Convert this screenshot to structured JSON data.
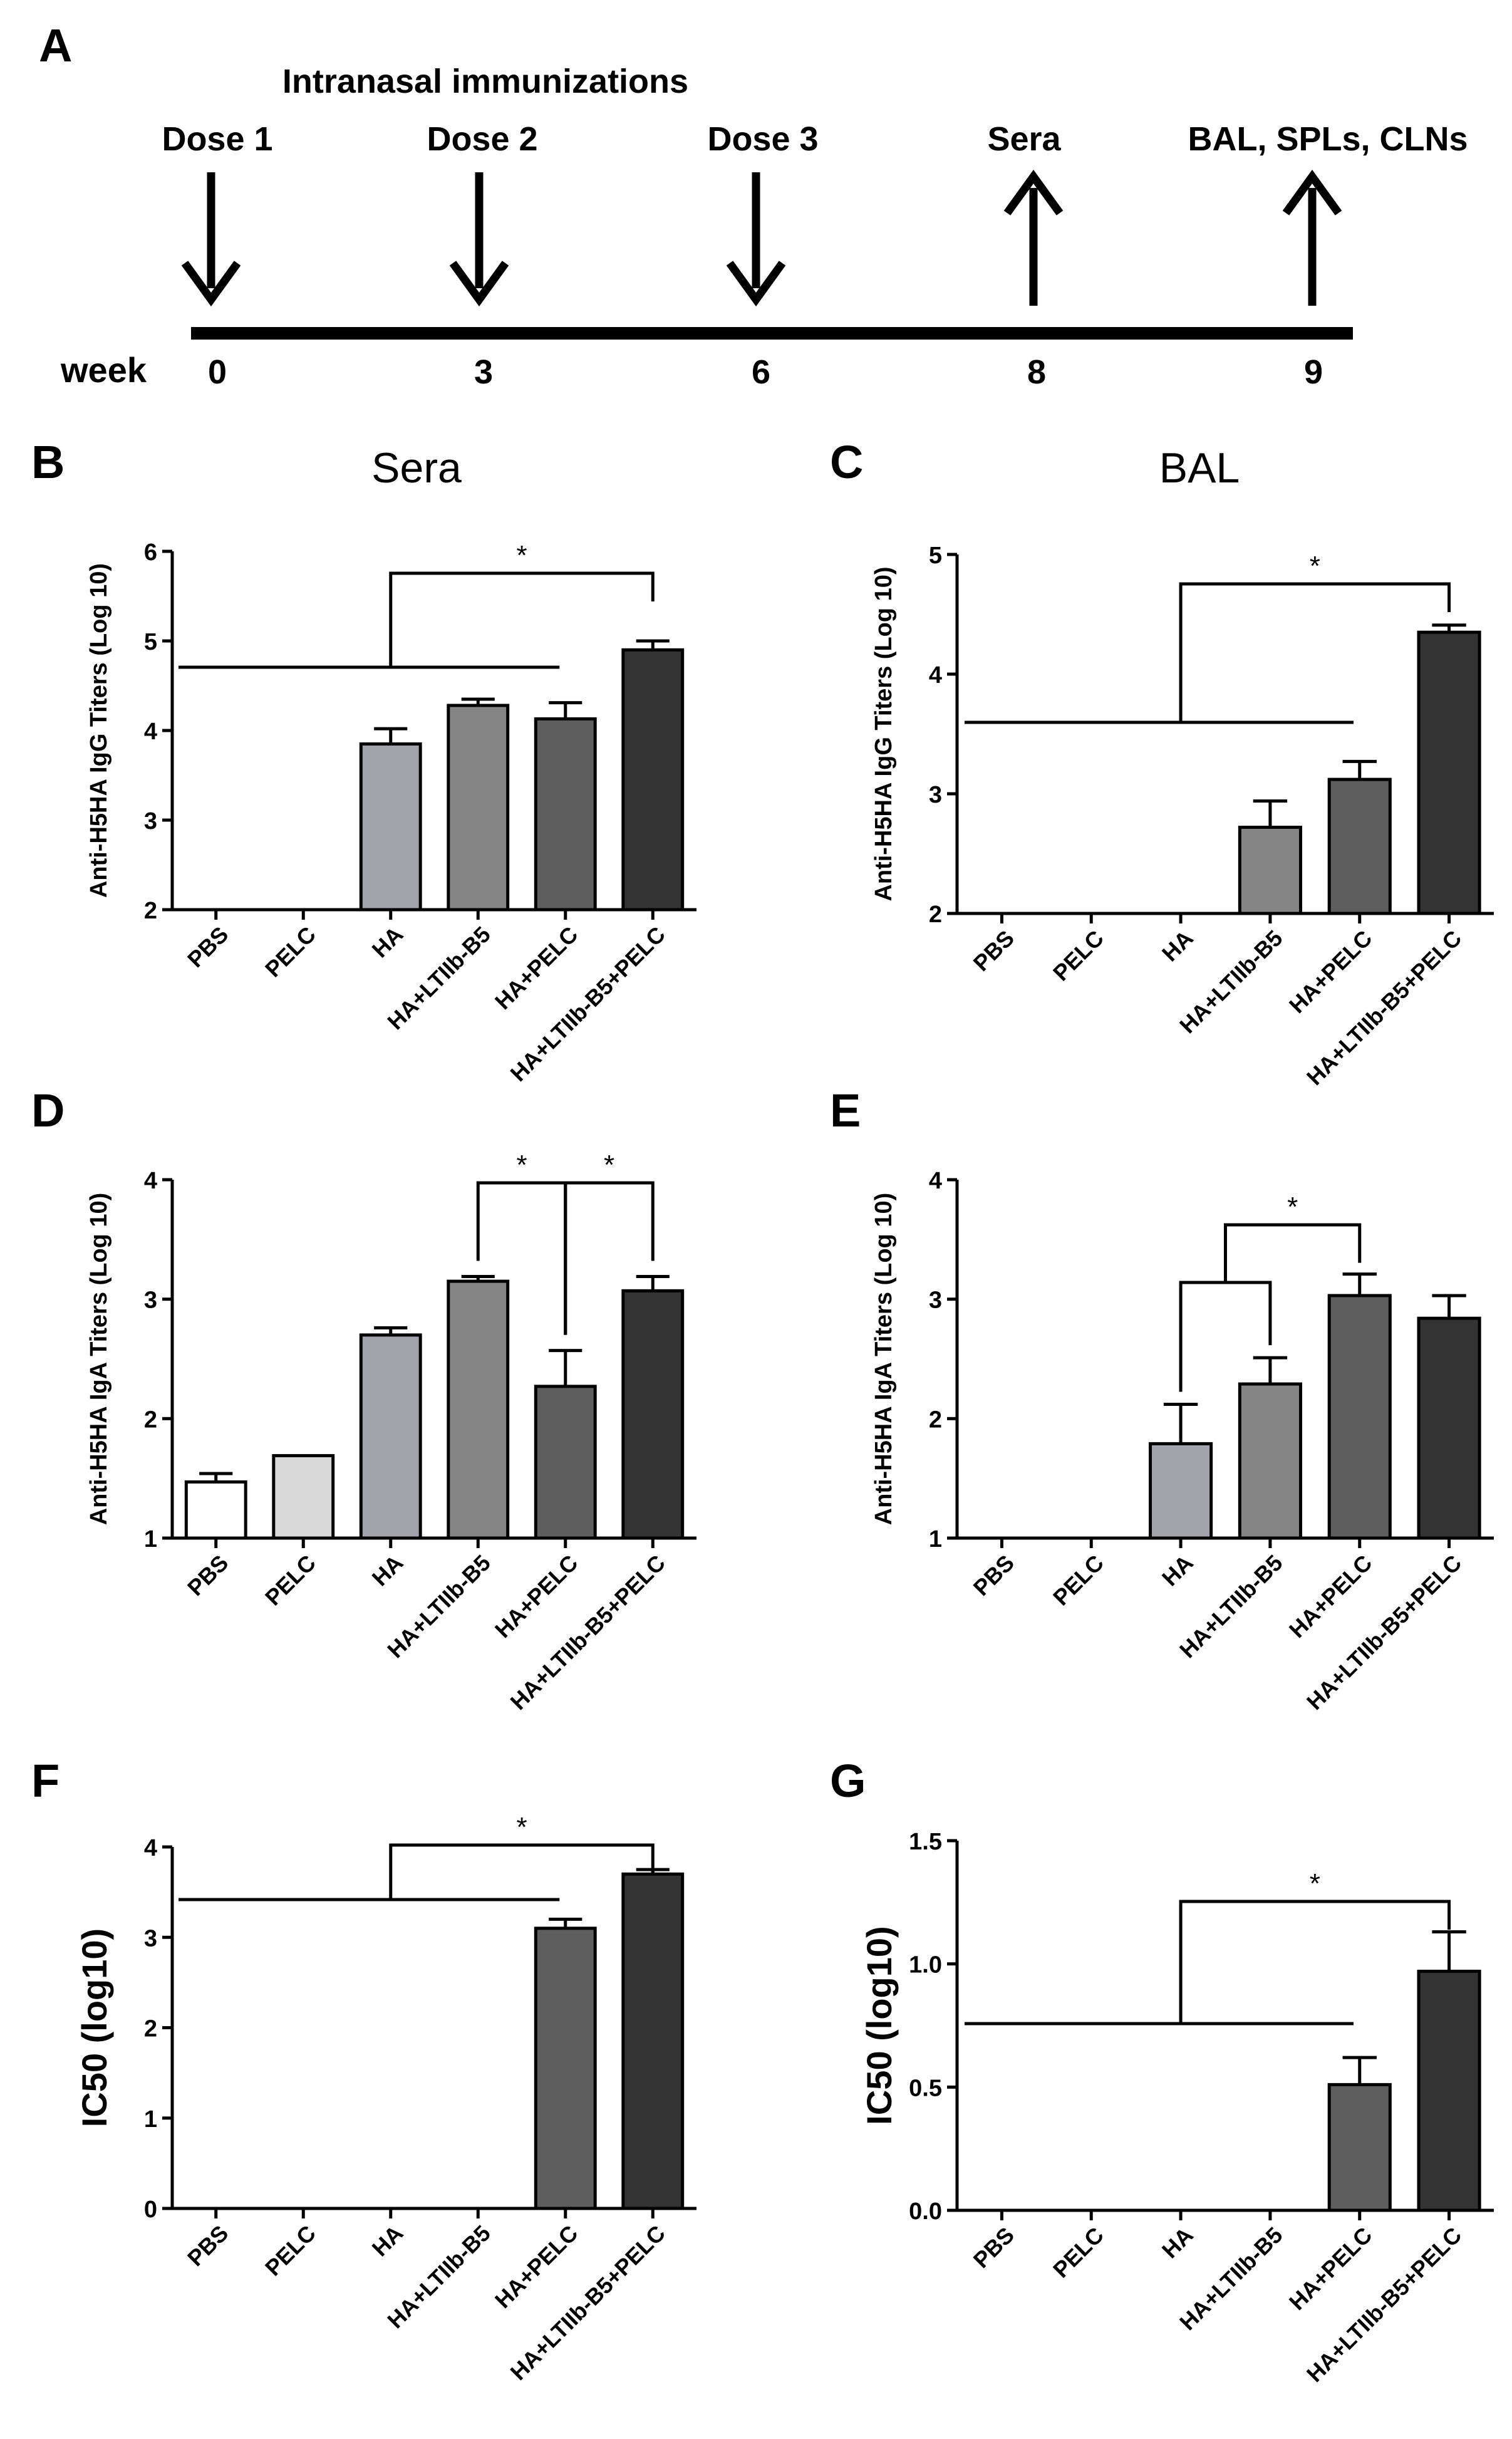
{
  "timeline": {
    "panel_label": "A",
    "header": "Intranasal immunizations",
    "axis_label": "week",
    "events": [
      {
        "label": "Dose 1",
        "week": "0",
        "direction": "down"
      },
      {
        "label": "Dose 2",
        "week": "3",
        "direction": "down"
      },
      {
        "label": "Dose 3",
        "week": "6",
        "direction": "down"
      },
      {
        "label": "Sera",
        "week": "8",
        "direction": "up"
      },
      {
        "label": "BAL, SPLs, CLNs",
        "week": "9",
        "direction": "up"
      }
    ]
  },
  "panels": {
    "B": {
      "label": "B",
      "title": "Sera"
    },
    "C": {
      "label": "C",
      "title": "BAL"
    },
    "D": {
      "label": "D"
    },
    "E": {
      "label": "E"
    },
    "F": {
      "label": "F"
    },
    "G": {
      "label": "G"
    }
  },
  "colors": {
    "PBS": "#ffffff",
    "PELC": "#d9d9d9",
    "HA": "#a3a3ab",
    "HA+LTIIb-B5": "#858585",
    "HA+PELC": "#5e5e5e",
    "HA+LTIIb-B5+PELC": "#333333"
  },
  "chart_data": [
    {
      "id": "B",
      "type": "bar",
      "title": "Sera",
      "ylabel": "Anti-H5HA IgG Titers (Log 10)",
      "categories": [
        "PBS",
        "PELC",
        "HA",
        "HA+LTIIb-B5",
        "HA+PELC",
        "HA+LTIIb-B5+PELC"
      ],
      "values": [
        null,
        null,
        3.85,
        4.28,
        4.13,
        4.9
      ],
      "errors": [
        null,
        null,
        0.17,
        0.07,
        0.18,
        0.1
      ],
      "ylim": [
        2,
        6
      ],
      "yticks": [
        "2",
        "3",
        "4",
        "5",
        "6"
      ],
      "significance": [
        {
          "type": "group",
          "from": [
            0,
            4
          ],
          "to": 5,
          "label": "*"
        }
      ]
    },
    {
      "id": "C",
      "type": "bar",
      "title": "BAL",
      "ylabel": "Anti-H5HA IgG Titers (Log 10)",
      "categories": [
        "PBS",
        "PELC",
        "HA",
        "HA+LTIIb-B5",
        "HA+PELC",
        "HA+LTIIb-B5+PELC"
      ],
      "values": [
        null,
        null,
        null,
        2.72,
        3.12,
        4.35
      ],
      "errors": [
        null,
        null,
        null,
        0.22,
        0.15,
        0.06
      ],
      "ylim": [
        2,
        5
      ],
      "yticks": [
        "2",
        "3",
        "4",
        "5"
      ],
      "significance": [
        {
          "type": "group",
          "from": [
            0,
            4
          ],
          "to": 5,
          "label": "*"
        }
      ]
    },
    {
      "id": "D",
      "type": "bar",
      "ylabel": "Anti-H5HA IgA Titers (Log 10)",
      "categories": [
        "PBS",
        "PELC",
        "HA",
        "HA+LTIIb-B5",
        "HA+PELC",
        "HA+LTIIb-B5+PELC"
      ],
      "values": [
        1.47,
        1.69,
        2.7,
        3.15,
        2.27,
        3.07
      ],
      "errors": [
        0.07,
        null,
        0.06,
        0.04,
        0.3,
        0.12
      ],
      "ylim": [
        1,
        4
      ],
      "yticks": [
        "1",
        "2",
        "3",
        "4"
      ],
      "significance": [
        {
          "type": "pair",
          "a": 3,
          "b": 4,
          "label": "*"
        },
        {
          "type": "pair",
          "a": 4,
          "b": 5,
          "label": "*"
        }
      ]
    },
    {
      "id": "E",
      "type": "bar",
      "ylabel": "Anti-H5HA IgA Titers (Log 10)",
      "categories": [
        "PBS",
        "PELC",
        "HA",
        "HA+LTIIb-B5",
        "HA+PELC",
        "HA+LTIIb-B5+PELC"
      ],
      "values": [
        null,
        null,
        1.79,
        2.29,
        3.03,
        2.84
      ],
      "errors": [
        null,
        null,
        0.33,
        0.22,
        0.18,
        0.19
      ],
      "ylim": [
        1,
        4
      ],
      "yticks": [
        "1",
        "2",
        "3",
        "4"
      ],
      "significance": [
        {
          "type": "nested",
          "a": 2,
          "b": 3,
          "to": 4,
          "label": "*"
        }
      ]
    },
    {
      "id": "F",
      "type": "bar",
      "ylabel": "IC50 (log10)",
      "categories": [
        "PBS",
        "PELC",
        "HA",
        "HA+LTIIb-B5",
        "HA+PELC",
        "HA+LTIIb-B5+PELC"
      ],
      "values": [
        null,
        null,
        null,
        null,
        3.1,
        3.7
      ],
      "errors": [
        null,
        null,
        null,
        null,
        0.1,
        0.05
      ],
      "ylim": [
        0,
        4
      ],
      "yticks": [
        "0",
        "1",
        "2",
        "3",
        "4"
      ],
      "significance": [
        {
          "type": "group",
          "from": [
            0,
            4
          ],
          "to": 5,
          "label": "*"
        }
      ]
    },
    {
      "id": "G",
      "type": "bar",
      "ylabel": "IC50 (log10)",
      "categories": [
        "PBS",
        "PELC",
        "HA",
        "HA+LTIIb-B5",
        "HA+PELC",
        "HA+LTIIb-B5+PELC"
      ],
      "values": [
        null,
        null,
        null,
        null,
        0.51,
        0.97
      ],
      "errors": [
        null,
        null,
        null,
        null,
        0.11,
        0.16
      ],
      "ylim": [
        0,
        1.5
      ],
      "yticks": [
        "0.0",
        "0.5",
        "1.0",
        "1.5"
      ],
      "significance": [
        {
          "type": "group",
          "from": [
            0,
            4
          ],
          "to": 5,
          "label": "*"
        }
      ]
    }
  ]
}
